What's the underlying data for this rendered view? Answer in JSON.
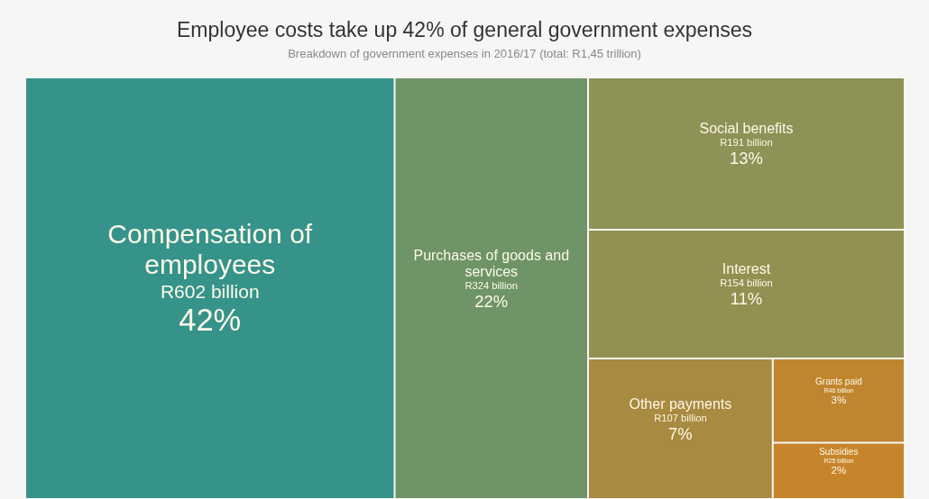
{
  "chart_data": {
    "type": "other",
    "title": "Employee costs take up 42% of general government expenses",
    "subtitle": "Breakdown of government expenses in 2016/17 (total: R1,45 trillion)",
    "categories": [
      "Compensation of employees",
      "Purchases of goods and services",
      "Social benefits",
      "Interest",
      "Other payments",
      "Grants paid",
      "Subsidies"
    ],
    "colors": [
      "#35938a",
      "#6e9468",
      "#8e9256",
      "#939152",
      "#a88a40",
      "#bf862f",
      "#c7852b"
    ],
    "values": [
      42,
      22,
      13,
      11,
      7,
      3,
      2
    ],
    "value_labels": [
      "42%",
      "22%",
      "13%",
      "11%",
      "7%",
      "3%",
      "2%"
    ],
    "annotations": [
      "R602 billion",
      "R324 billion",
      "R191 billion",
      "R154 billion",
      "R107 billion",
      "R46 billion",
      "R25 billion"
    ]
  }
}
